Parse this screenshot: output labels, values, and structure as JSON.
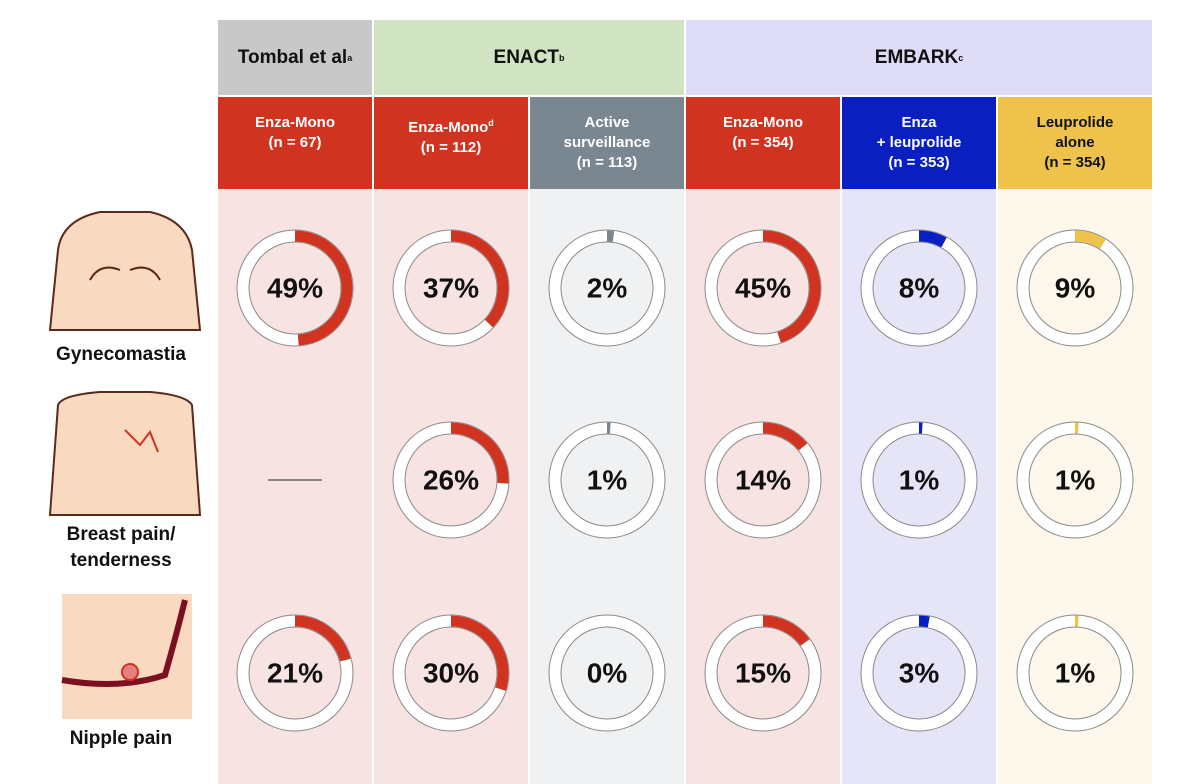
{
  "groups": [
    {
      "label": "Tombal et al",
      "note": "a",
      "color": "#c8c8c8",
      "columns": [
        {
          "name": "Enza-Mono",
          "note": "",
          "sample": "(n = 67)",
          "color": "#d0331f",
          "background": "#f8e3e3"
        }
      ]
    },
    {
      "label": "ENACT",
      "note": "b",
      "color": "#d0e3c2",
      "columns": [
        {
          "name": "Enza-Mono",
          "note": "d",
          "sample": "(n = 112)",
          "color": "#d0331f",
          "background": "#f8e3e3"
        },
        {
          "name": "Active\nsurveillance",
          "note": "",
          "sample": "(n = 113)",
          "color": "#7a8790",
          "background": "#eff1f3"
        }
      ]
    },
    {
      "label": "EMBARK",
      "note": "c",
      "color": "#dedcf7",
      "columns": [
        {
          "name": "Enza-Mono",
          "note": "",
          "sample": "(n = 354)",
          "color": "#d0331f",
          "background": "#f8e3e3"
        },
        {
          "name": "Enza\n+ leuprolide",
          "note": "",
          "sample": "(n = 353)",
          "color": "#0a1fbf",
          "background": "#e6e5f7"
        },
        {
          "name": "Leuprolide\nalone",
          "note": "",
          "sample": "(n = 354)",
          "color": "#efc24c",
          "background": "#fdf8eb"
        }
      ]
    }
  ],
  "rows": [
    {
      "label": "Gynecomastia",
      "values": [
        49,
        37,
        2,
        45,
        8,
        9
      ],
      "value_labels": [
        "49%",
        "37%",
        "2%",
        "45%",
        "8%",
        "9%"
      ]
    },
    {
      "label": "Breast pain/\ntenderness",
      "values": [
        null,
        26,
        1,
        14,
        1,
        1
      ],
      "value_labels": [
        null,
        "26%",
        "1%",
        "14%",
        "1%",
        "1%"
      ]
    },
    {
      "label": "Nipple pain",
      "values": [
        21,
        30,
        0,
        15,
        3,
        1
      ],
      "value_labels": [
        "21%",
        "30%",
        "0%",
        "15%",
        "3%",
        "1%"
      ]
    }
  ]
}
